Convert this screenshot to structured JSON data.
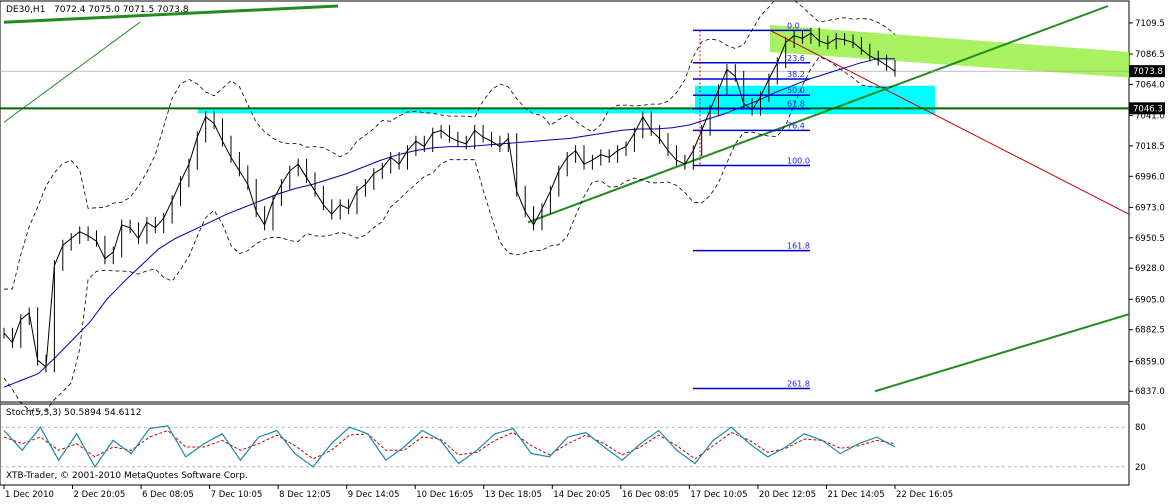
{
  "header": {
    "symbol": "DE30,H1",
    "ohlc": "7072.4 7075.0 7071.5 7073.8"
  },
  "watermark": "XTB-Trader, © 2001-2010 MetaQuotes Software Corp.",
  "chart_data": [
    {
      "type": "line",
      "title": "DE30,H1",
      "ylim": [
        6832,
        7122
      ],
      "y_ticks": [
        "7109.5",
        "7086.5",
        "7064.0",
        "7041.0",
        "7018.5",
        "6996.0",
        "6973.0",
        "6950.5",
        "6928.0",
        "6905.0",
        "6882.5",
        "6859.0",
        "6837.0"
      ],
      "x_ticks": [
        "1 Dec 2010",
        "2 Dec 20:05",
        "6 Dec 08:05",
        "7 Dec 10:05",
        "8 Dec 12:05",
        "9 Dec 14:05",
        "10 Dec 16:05",
        "13 Dec 18:05",
        "14 Dec 20:05",
        "16 Dec 08:05",
        "17 Dec 10:05",
        "20 Dec 12:05",
        "21 Dec 14:05",
        "22 Dec 16:05"
      ],
      "current_price": "7073.8",
      "horizontal_line_price": "7046.3",
      "series": [
        {
          "name": "price",
          "values": [
            6880,
            6873,
            6890,
            6895,
            6860,
            6855,
            6930,
            6945,
            6950,
            6955,
            6952,
            6948,
            6935,
            6940,
            6960,
            6958,
            6950,
            6962,
            6958,
            6965,
            6978,
            6992,
            7005,
            7025,
            7040,
            7035,
            7022,
            7010,
            7000,
            6990,
            6970,
            6960,
            6978,
            6990,
            7000,
            7005,
            6995,
            6985,
            6975,
            6968,
            6975,
            6972,
            6985,
            6990,
            6998,
            7002,
            7010,
            7005,
            7015,
            7022,
            7018,
            7028,
            7030,
            7025,
            7022,
            7020,
            7030,
            7025,
            7022,
            7018,
            7024,
            6985,
            6970,
            6960,
            6972,
            6985,
            7000,
            7010,
            7015,
            7005,
            7008,
            7012,
            7010,
            7015,
            7018,
            7028,
            7040,
            7030,
            7024,
            7015,
            7008,
            7005,
            7015,
            7030,
            7045,
            7060,
            7075,
            7070,
            7050,
            7045,
            7055,
            7068,
            7080,
            7095,
            7100,
            7098,
            7102,
            7096,
            7094,
            7098,
            7097,
            7095,
            7090,
            7085,
            7082,
            7078,
            7073.8
          ]
        },
        {
          "name": "MA",
          "values": [
            6840,
            6845,
            6850,
            6862,
            6875,
            6888,
            6905,
            6918,
            6930,
            6942,
            6950,
            6956,
            6962,
            6968,
            6973,
            6978,
            6983,
            6987,
            6990,
            6994,
            6998,
            7003,
            7008,
            7012,
            7015,
            7017,
            7018,
            7018,
            7019,
            7020,
            7021,
            7022,
            7023,
            7024,
            7026,
            7028,
            7030,
            7031,
            7031,
            7032,
            7034,
            7038,
            7042,
            7047,
            7052,
            7058,
            7063,
            7068,
            7072,
            7076,
            7080,
            7083,
            7083
          ]
        },
        {
          "name": "Stoch main",
          "values": [
            75,
            45,
            80,
            30,
            70,
            20,
            60,
            40,
            78,
            82,
            35,
            55,
            70,
            30,
            65,
            75,
            40,
            20,
            55,
            80,
            70,
            30,
            50,
            75,
            60,
            25,
            45,
            70,
            78,
            40,
            35,
            65,
            72,
            50,
            30,
            55,
            75,
            45,
            25,
            60,
            80,
            55,
            35,
            50,
            70,
            60,
            40,
            55,
            65,
            50
          ]
        },
        {
          "name": "Stoch signal",
          "values": [
            65,
            55,
            65,
            45,
            55,
            35,
            50,
            45,
            65,
            75,
            50,
            50,
            60,
            45,
            55,
            68,
            52,
            32,
            45,
            68,
            70,
            45,
            45,
            65,
            62,
            38,
            42,
            60,
            72,
            52,
            38,
            55,
            68,
            55,
            38,
            50,
            68,
            52,
            32,
            52,
            72,
            60,
            42,
            48,
            62,
            60,
            48,
            52,
            60,
            55
          ]
        }
      ],
      "fibonacci": {
        "levels": [
          "0.0",
          "23.6",
          "38.2",
          "50.0",
          "61.8",
          "76.4",
          "100.0",
          "161.8",
          "261.8"
        ],
        "prices": [
          7104,
          7080,
          7068,
          7056,
          7046,
          7030,
          7004,
          6941,
          6839
        ]
      },
      "stoch_panel": {
        "label": "Stoch(5,3,3) 50.5894 54.6112",
        "ylim": [
          0,
          100
        ],
        "y_ticks": [
          "80",
          "20"
        ]
      }
    }
  ],
  "colors": {
    "frame": "#000000",
    "grid": "#000000",
    "price": "#000000",
    "ma": "#0000aa",
    "bands": "#000000",
    "trend": "#228b22",
    "hline": "#006400",
    "fib": "#0000cc",
    "fib_text": "#1a1aff",
    "rect": "#00ffff",
    "channel": "#99ee44",
    "red_line": "#cc0000",
    "stoch_main": "#1a8aa8",
    "stoch_signal": "#cc0000",
    "label_bg": "#000000",
    "label_fg": "#ffffff"
  }
}
